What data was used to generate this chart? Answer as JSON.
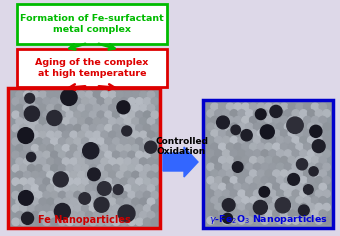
{
  "bg_color": "#ddd8e8",
  "box1_text": "Formation of Fe-surfactant\nmetal complex",
  "box1_edge_color": "#00bb00",
  "box1_text_color": "#00bb00",
  "box2_text": "Aging of the complex\nat high temperature",
  "box2_edge_color": "#dd0000",
  "box2_text_color": "#dd0000",
  "label_fe": "Fe Nanoparticles",
  "label_fe_color": "#cc0000",
  "label_fe2o3_color": "#0000dd",
  "arrow_label_line1": "Controlled",
  "arrow_label_line2": "Oxidation",
  "arrow_color": "#3366ff",
  "left_border_color": "#dd0000",
  "right_border_color": "#0000cc",
  "tem_bg": "#9098a0",
  "tem_small_circle": "#a8b0bc",
  "tem_dark_circle": "#181820",
  "tem_medium_circle": "#383848"
}
